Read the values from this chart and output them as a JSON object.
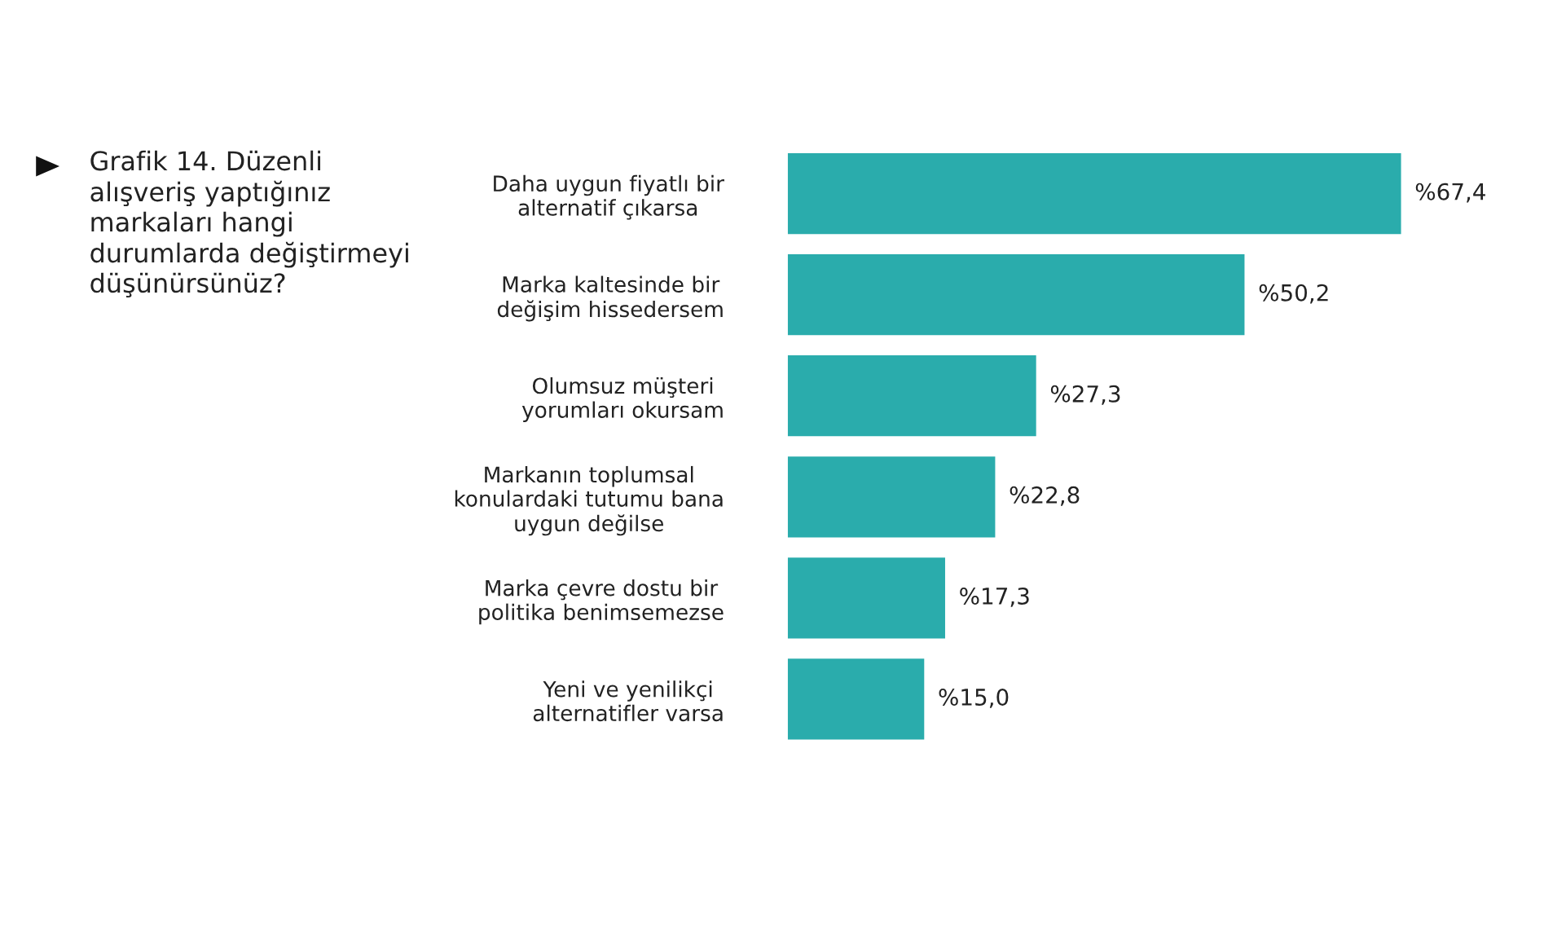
{
  "chart_data": {
    "type": "bar",
    "orientation": "horizontal",
    "title": "Grafik 14. Düzenli\nalışveriş yaptığınız\nmarkaları hangi\ndurumlarda değiştirmeyi\ndüşünürsünüz?",
    "categories": [
      "Daha uygun fiyatlı bir\nalternatif çıkarsa",
      "Marka kaltesinde bir\ndeğişim hissedersem",
      "Olumsuz müşteri\nyorumları okursam",
      "Markanın toplumsal\nkonulardaki tutumu bana\nuygun değilse",
      "Marka çevre dostu bir\npolitika benimsemezse",
      "Yeni ve yenilikçi\nalternatifler varsa"
    ],
    "values": [
      67.4,
      50.2,
      27.3,
      22.8,
      17.3,
      15.0
    ],
    "value_labels": [
      "%67,4",
      "%50,2",
      "%27,3",
      "%22,8",
      "%17,3",
      "%15,0"
    ],
    "color": "#2aacac",
    "grid": false,
    "legend": false
  }
}
